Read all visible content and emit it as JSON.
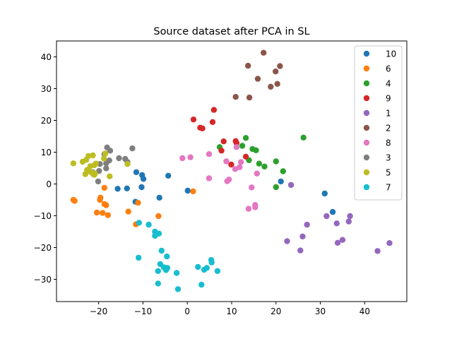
{
  "chart_data": {
    "type": "scatter",
    "title": "Source dataset after PCA in SL",
    "xlabel": "",
    "ylabel": "",
    "xlim": [
      -29.5,
      49.5
    ],
    "ylim": [
      -37,
      45
    ],
    "xticks": [
      -20,
      -10,
      0,
      10,
      20,
      30,
      40
    ],
    "yticks": [
      -30,
      -20,
      -10,
      0,
      10,
      20,
      30,
      40
    ],
    "grid": false,
    "legend_position": "top-right",
    "series": [
      {
        "name": "10",
        "color": "#1f77b4",
        "points": [
          [
            -11.5,
            3.7
          ],
          [
            -10.2,
            2.8
          ],
          [
            -9.9,
            1.6
          ],
          [
            -4.3,
            2.6
          ],
          [
            -10.3,
            -1.0
          ],
          [
            -15.7,
            -1.5
          ],
          [
            -13.6,
            -1.4
          ],
          [
            -6.3,
            -4.3
          ],
          [
            0.1,
            -2.1
          ],
          [
            -11.7,
            -5.6
          ],
          [
            21.1,
            0.8
          ],
          [
            31.0,
            -3.0
          ],
          [
            32.8,
            -8.8
          ]
        ]
      },
      {
        "name": "6",
        "color": "#ff7f0e",
        "points": [
          [
            -25.7,
            -5.0
          ],
          [
            -25.4,
            -5.3
          ],
          [
            -18.7,
            -1.2
          ],
          [
            -19.6,
            -4.3
          ],
          [
            -19.7,
            -5.0
          ],
          [
            -18.7,
            -6.3
          ],
          [
            -18.3,
            -6.7
          ],
          [
            -20.4,
            -9.0
          ],
          [
            -19.1,
            -9.1
          ],
          [
            -17.9,
            -9.8
          ],
          [
            -13.3,
            -8.7
          ],
          [
            -11.1,
            -5.9
          ],
          [
            -11.6,
            -12.7
          ],
          [
            -6.5,
            -10.1
          ],
          [
            1.3,
            -2.3
          ]
        ]
      },
      {
        "name": "4",
        "color": "#2ca02c",
        "points": [
          [
            13.2,
            14.5
          ],
          [
            26.2,
            14.6
          ],
          [
            7.3,
            11.6
          ],
          [
            12.4,
            12.0
          ],
          [
            14.7,
            11.0
          ],
          [
            15.5,
            10.6
          ],
          [
            20.0,
            7.1
          ],
          [
            13.9,
            7.5
          ],
          [
            16.2,
            6.4
          ],
          [
            17.4,
            5.5
          ],
          [
            21.6,
            4.0
          ],
          [
            20.0,
            -1.0
          ]
        ]
      },
      {
        "name": "9",
        "color": "#d62728",
        "points": [
          [
            6.0,
            23.3
          ],
          [
            1.4,
            20.3
          ],
          [
            2.9,
            17.7
          ],
          [
            3.4,
            17.5
          ],
          [
            5.7,
            19.5
          ],
          [
            8.2,
            13.4
          ],
          [
            10.9,
            13.5
          ],
          [
            11.1,
            12.9
          ],
          [
            7.7,
            10.5
          ],
          [
            13.2,
            8.6
          ],
          [
            9.9,
            6.1
          ]
        ]
      },
      {
        "name": "1",
        "color": "#9467bd",
        "points": [
          [
            23.4,
            -0.3
          ],
          [
            31.4,
            -10.1
          ],
          [
            33.7,
            -12.4
          ],
          [
            36.4,
            -11.8
          ],
          [
            36.7,
            -10.1
          ],
          [
            27.0,
            -12.8
          ],
          [
            26.0,
            -16.5
          ],
          [
            22.5,
            -18.0
          ],
          [
            25.5,
            -20.9
          ],
          [
            33.9,
            -18.5
          ],
          [
            35.0,
            -17.6
          ],
          [
            42.9,
            -21.1
          ],
          [
            45.6,
            -18.6
          ]
        ]
      },
      {
        "name": "2",
        "color": "#8c564b",
        "points": [
          [
            17.2,
            41.3
          ],
          [
            13.7,
            37.2
          ],
          [
            20.9,
            37.1
          ],
          [
            19.9,
            35.4
          ],
          [
            15.9,
            33.1
          ],
          [
            20.3,
            31.5
          ],
          [
            18.8,
            30.6
          ],
          [
            10.9,
            27.4
          ],
          [
            14.0,
            27.2
          ]
        ]
      },
      {
        "name": "8",
        "color": "#e377c2",
        "points": [
          [
            -1.1,
            8.1
          ],
          [
            0.7,
            8.4
          ],
          [
            4.9,
            9.4
          ],
          [
            11.1,
            11.6
          ],
          [
            8.8,
            7.1
          ],
          [
            12.1,
            6.9
          ],
          [
            15.7,
            3.3
          ],
          [
            10.8,
            4.7
          ],
          [
            11.8,
            5.3
          ],
          [
            4.9,
            1.8
          ],
          [
            9.4,
            1.4
          ],
          [
            9.0,
            0.9
          ],
          [
            14.5,
            -1.1
          ],
          [
            15.3,
            -6.6
          ],
          [
            15.3,
            -7.3
          ],
          [
            13.8,
            -7.8
          ]
        ]
      },
      {
        "name": "3",
        "color": "#7f7f7f",
        "points": [
          [
            -18.1,
            11.5
          ],
          [
            -17.4,
            10.5
          ],
          [
            -12.4,
            11.2
          ],
          [
            -15.4,
            8.1
          ],
          [
            -14.0,
            7.9
          ],
          [
            -13.5,
            6.9
          ],
          [
            -19.7,
            6.3
          ],
          [
            -18.3,
            6.5
          ],
          [
            -17.6,
            7.4
          ],
          [
            -19.9,
            4.1
          ],
          [
            -18.3,
            4.9
          ],
          [
            -21.4,
            3.7
          ],
          [
            -20.1,
            0.8
          ],
          [
            -18.7,
            9.4
          ]
        ]
      },
      {
        "name": "5",
        "color": "#bcbd22",
        "points": [
          [
            -25.7,
            6.5
          ],
          [
            -23.6,
            7.0
          ],
          [
            -22.8,
            7.6
          ],
          [
            -22.3,
            8.8
          ],
          [
            -21.3,
            9.0
          ],
          [
            -20.6,
            6.4
          ],
          [
            -21.9,
            5.6
          ],
          [
            -22.6,
            4.4
          ],
          [
            -23.0,
            3.1
          ],
          [
            -21.2,
            3.1
          ],
          [
            -21.6,
            3.6
          ],
          [
            -20.8,
            3.3
          ],
          [
            -18.8,
            8.0
          ],
          [
            -18.5,
            9.6
          ],
          [
            -13.5,
            6.3
          ],
          [
            -17.5,
            2.4
          ],
          [
            -21.0,
            2.9
          ],
          [
            -21.8,
            3.8
          ],
          [
            -21.0,
            5.9
          ]
        ]
      },
      {
        "name": "7",
        "color": "#17becf",
        "points": [
          [
            -10.9,
            -12.2
          ],
          [
            -8.7,
            -12.8
          ],
          [
            -7.3,
            -15.0
          ],
          [
            -6.4,
            -15.6
          ],
          [
            -7.3,
            -16.3
          ],
          [
            -5.8,
            -21.0
          ],
          [
            -4.6,
            -22.8
          ],
          [
            -11.0,
            -23.2
          ],
          [
            -6.1,
            -25.2
          ],
          [
            -5.3,
            -26.2
          ],
          [
            -4.5,
            -26.4
          ],
          [
            -4.8,
            -27.1
          ],
          [
            -6.6,
            -27.4
          ],
          [
            -2.4,
            -28.0
          ],
          [
            -6.6,
            -31.3
          ],
          [
            -2.1,
            -33.1
          ],
          [
            2.4,
            -26.1
          ],
          [
            3.8,
            -27.0
          ],
          [
            4.4,
            -26.4
          ],
          [
            5.4,
            -23.9
          ],
          [
            5.5,
            -24.7
          ],
          [
            6.8,
            -27.4
          ],
          [
            3.2,
            -31.7
          ]
        ]
      }
    ]
  }
}
